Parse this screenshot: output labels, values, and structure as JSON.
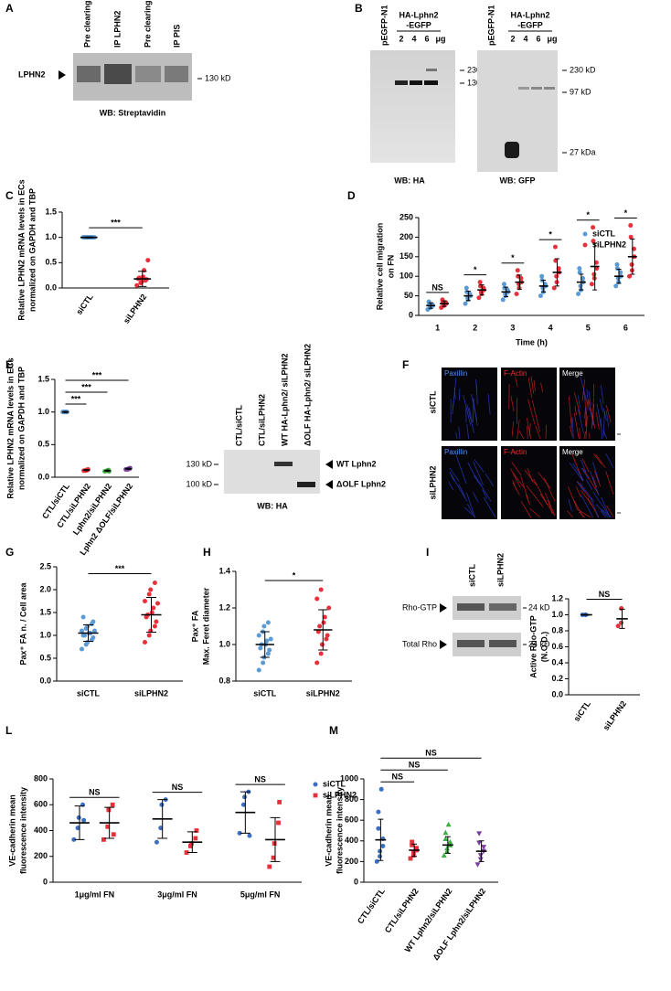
{
  "panel_labels": [
    "A",
    "B",
    "C",
    "D",
    "E",
    "F",
    "G",
    "H",
    "I",
    "L",
    "M"
  ],
  "blot_a": {
    "lanes": [
      "Pre clearing",
      "IP LPHN2",
      "Pre clearing",
      "IP PIS"
    ],
    "band": "LPHN2",
    "marker": "130 kD",
    "wb": "WB: Streptavidin"
  },
  "blot_b_ha": {
    "control": "pEGFP-N1",
    "construct": [
      "HA-Lphn2",
      "-EGFP"
    ],
    "doses": [
      "2",
      "4",
      "6",
      "μg"
    ],
    "markers": [
      "230 kD",
      "130 kD"
    ],
    "wb": "WB: HA"
  },
  "blot_b_gfp": {
    "control": "pEGFP-N1",
    "construct": [
      "HA-Lphn2",
      "-EGFP"
    ],
    "doses": [
      "2",
      "4",
      "6",
      "μg"
    ],
    "markers": [
      "230 kD",
      "97 kD",
      "27 kDa"
    ],
    "wb": "WB: GFP"
  },
  "blot_e": {
    "lanes": [
      "CTL/siCTL",
      "CTL/siLPHN2",
      "WT HA-Lphn2/ siLPHN2",
      "ΔOLF HA-Lphn2/ siLPHN2"
    ],
    "markers": [
      "130 kD",
      "100 kD"
    ],
    "bands": [
      "WT Lphn2",
      "ΔOLF Lphn2"
    ],
    "wb": "WB: HA"
  },
  "micrographs_f": {
    "channels": [
      "Paxillin",
      "F-Actin",
      "Merge"
    ],
    "conditions": [
      "siCTL",
      "siLPHN2"
    ]
  },
  "blot_i": {
    "lanes": [
      "siCTL",
      "siLPHN2"
    ],
    "bands": [
      "Rho-GTP",
      "Total Rho"
    ],
    "markers": [
      "24 kD",
      "24 kD"
    ]
  },
  "chart_data": [
    {
      "type": "dot",
      "ylabel": [
        "Relative LPHN2 mRNA levels in ECs",
        "normalized on GAPDH and TBP"
      ],
      "categories": [
        "siCTL",
        "siLPHN2"
      ],
      "ylim": [
        0,
        1.5
      ],
      "yticks": [
        {
          "value": 0,
          "label": "0.0"
        },
        {
          "value": 0.5,
          "label": "0.5"
        },
        {
          "value": 1,
          "label": "1.0"
        },
        {
          "value": 1.5,
          "label": "1.5"
        }
      ],
      "series": [
        {
          "color": [
            "#5b9bd5",
            "#e8303a"
          ],
          "marker": "circle",
          "points": [
            [
              1,
              1,
              1,
              1,
              1,
              1,
              1,
              1,
              1,
              1,
              1,
              1
            ],
            [
              0.05,
              0.1,
              0.12,
              0.15,
              0.17,
              0.18,
              0.2,
              0.22,
              0.35,
              0.55
            ]
          ],
          "mean": [
            1,
            0.18
          ],
          "sd": [
            0.01,
            0.15
          ]
        }
      ],
      "significance": [
        "***"
      ]
    },
    {
      "type": "dot",
      "ylabel": [
        "Relative cell migration",
        "on FN"
      ],
      "xlabel": "Time (h)",
      "categories": [
        "1",
        "2",
        "3",
        "4",
        "5",
        "6"
      ],
      "ylim": [
        0,
        250
      ],
      "yticks": [
        0,
        50,
        100,
        150,
        200,
        250
      ],
      "series": [
        {
          "name": "siCTL",
          "color": "#5b9bd5",
          "marker": "circle",
          "points": [
            [
              15,
              20,
              22,
              25,
              28,
              30,
              35
            ],
            [
              30,
              40,
              45,
              50,
              55,
              60,
              70
            ],
            [
              40,
              50,
              55,
              60,
              65,
              70,
              80
            ],
            [
              50,
              60,
              70,
              75,
              80,
              90,
              100
            ],
            [
              55,
              65,
              75,
              85,
              95,
              110,
              120
            ],
            [
              75,
              85,
              95,
              100,
              110,
              120,
              130
            ]
          ],
          "mean": [
            25,
            50,
            60,
            75,
            85,
            100
          ],
          "sd": [
            7,
            12,
            12,
            15,
            20,
            18
          ]
        },
        {
          "name": "siLPHN2",
          "color": "#e8303a",
          "marker": "circle",
          "points": [
            [
              20,
              25,
              28,
              30,
              33,
              36,
              40
            ],
            [
              45,
              55,
              60,
              65,
              70,
              75,
              85
            ],
            [
              55,
              70,
              80,
              85,
              95,
              100,
              115
            ],
            [
              70,
              85,
              100,
              110,
              120,
              140,
              175
            ],
            [
              80,
              95,
              105,
              120,
              135,
              190,
              225
            ],
            [
              100,
              115,
              130,
              150,
              170,
              200,
              230
            ]
          ],
          "mean": [
            30,
            65,
            85,
            110,
            125,
            150
          ],
          "sd": [
            7,
            13,
            18,
            35,
            60,
            45
          ]
        }
      ],
      "significance": [
        "NS",
        "*",
        "*",
        "*",
        "*",
        "*"
      ]
    },
    {
      "type": "dot",
      "ylabel": [
        "Relative LPHN2 mRNA levels in ECs",
        "normalized on GAPDH and TBP"
      ],
      "categories": [
        "CTL/siCTL",
        "CTL/siLPHN2",
        "Lphn2/siLPHN2",
        "Lphn2 ΔOLF/siLPHN2"
      ],
      "ylim": [
        0,
        1.5
      ],
      "yticks": [
        {
          "value": 0,
          "label": "0.0"
        },
        {
          "value": 0.5,
          "label": "0.5"
        },
        {
          "value": 1,
          "label": "1.0"
        },
        {
          "value": 1.5,
          "label": "1.5"
        }
      ],
      "series": [
        {
          "color": [
            "#5b9bd5",
            "#e8303a",
            "#3cb043",
            "#7b3fa0"
          ],
          "marker": "circle",
          "points": [
            [
              1,
              1,
              1,
              1,
              1,
              1,
              1,
              1
            ],
            [
              0.1,
              0.11,
              0.1,
              0.12,
              0.11
            ],
            [
              0.09,
              0.1,
              0.1,
              0.09,
              0.11
            ],
            [
              0.12,
              0.13,
              0.12,
              0.14,
              0.13
            ]
          ],
          "mean": [
            1,
            0.11,
            0.1,
            0.13
          ],
          "sd": [
            0.01,
            0.01,
            0.01,
            0.01
          ]
        }
      ],
      "significance": [
        "***",
        "***",
        "***"
      ]
    },
    {
      "type": "dot",
      "ylabel": [
        "Pax⁺ FA n. / Cell area"
      ],
      "categories": [
        "siCTL",
        "siLPHN2"
      ],
      "ylim": [
        0,
        2.5
      ],
      "yticks": [
        {
          "value": 0,
          "label": "0.0"
        },
        {
          "value": 0.5,
          "label": "0.5"
        },
        {
          "value": 1,
          "label": "1.0"
        },
        {
          "value": 1.5,
          "label": "1.5"
        },
        {
          "value": 2,
          "label": "2.0"
        },
        {
          "value": 2.5,
          "label": "2.5"
        }
      ],
      "series": [
        {
          "color": [
            "#5b9bd5",
            "#e8303a"
          ],
          "marker": "circle",
          "points": [
            [
              0.7,
              0.8,
              0.85,
              0.9,
              0.95,
              1.0,
              1.0,
              1.05,
              1.05,
              1.1,
              1.1,
              1.15,
              1.2,
              1.25,
              1.3,
              1.4
            ],
            [
              0.85,
              1.0,
              1.1,
              1.2,
              1.3,
              1.4,
              1.45,
              1.5,
              1.6,
              1.7,
              1.75,
              1.9,
              2.0,
              2.15
            ]
          ],
          "mean": [
            1.05,
            1.45
          ],
          "sd": [
            0.18,
            0.38
          ]
        }
      ],
      "significance": [
        "***"
      ]
    },
    {
      "type": "dot",
      "ylabel": [
        "Pax⁺ FA",
        "Max. Feret diameter"
      ],
      "categories": [
        "siCTL",
        "siLPHN2"
      ],
      "ylim": [
        0.8,
        1.4
      ],
      "yticks": [
        {
          "value": 0.8,
          "label": "0.8"
        },
        {
          "value": 1,
          "label": "1.0"
        },
        {
          "value": 1.2,
          "label": "1.2"
        },
        {
          "value": 1.4,
          "label": "1.4"
        }
      ],
      "series": [
        {
          "color": [
            "#5b9bd5",
            "#e8303a"
          ],
          "marker": "circle",
          "points": [
            [
              0.86,
              0.9,
              0.93,
              0.95,
              0.97,
              0.98,
              1.0,
              1.0,
              1.02,
              1.03,
              1.05,
              1.07,
              1.1,
              1.12
            ],
            [
              0.9,
              0.95,
              1.0,
              1.03,
              1.05,
              1.07,
              1.1,
              1.12,
              1.15,
              1.2,
              1.25,
              1.3
            ]
          ],
          "mean": [
            1.0,
            1.08
          ],
          "sd": [
            0.07,
            0.11
          ]
        }
      ],
      "significance": [
        "*"
      ]
    },
    {
      "type": "dot",
      "ylabel": [
        "Active Rho-GTP",
        "(N.O.D.)"
      ],
      "categories": [
        "siCTL",
        "siLPHN2"
      ],
      "ylim": [
        0,
        1.2
      ],
      "yticks": [
        {
          "value": 0,
          "label": "0.0"
        },
        {
          "value": 0.2,
          "label": "0.2"
        },
        {
          "value": 0.4,
          "label": "0.4"
        },
        {
          "value": 0.6,
          "label": "0.6"
        },
        {
          "value": 0.8,
          "label": "0.8"
        },
        {
          "value": 1,
          "label": "1.0"
        },
        {
          "value": 1.2,
          "label": "1.2"
        }
      ],
      "series": [
        {
          "color": [
            "#3a6fc4",
            "#e8303a"
          ],
          "marker": "circle",
          "points": [
            [
              1,
              1,
              1
            ],
            [
              0.86,
              0.9,
              1.08
            ]
          ],
          "mean": [
            1,
            0.95
          ],
          "sd": [
            0.005,
            0.12
          ]
        }
      ],
      "significance": [
        "NS"
      ]
    },
    {
      "type": "dot",
      "ylabel": [
        "VE-cadherin mean",
        "fluorescence intensity"
      ],
      "categories": [
        "1μg/ml FN",
        "3μg/ml FN",
        "5μg/ml FN"
      ],
      "ylim": [
        0,
        800
      ],
      "yticks": [
        0,
        200,
        400,
        600,
        800
      ],
      "series": [
        {
          "name": "siCTL",
          "color": "#3a6fc4",
          "marker": "circle",
          "points": [
            [
              330,
              420,
              500,
              600,
              480
            ],
            [
              310,
              420,
              600,
              640
            ],
            [
              380,
              600,
              660,
              700,
              360
            ]
          ],
          "mean": [
            460,
            490,
            540
          ],
          "sd": [
            130,
            150,
            160
          ]
        },
        {
          "name": "siLPHN2",
          "color": "#e8303a",
          "marker": "square",
          "points": [
            [
              330,
              430,
              560,
              600,
              370
            ],
            [
              230,
              280,
              300,
              340,
              400
            ],
            [
              120,
              190,
              300,
              460,
              620
            ]
          ],
          "mean": [
            460,
            310,
            330
          ],
          "sd": [
            120,
            80,
            170
          ]
        }
      ],
      "significance": [
        "NS",
        "NS",
        "NS"
      ]
    },
    {
      "type": "dot",
      "ylabel": [
        "VE-cadherin mean",
        "fluorescence intensity"
      ],
      "categories": [
        "CTL/siCTL",
        "CTL/siLPHN2",
        "WT Lphn2/siLPHN2",
        "ΔOLF Lphn2/siLPHN2"
      ],
      "ylim": [
        0,
        1000
      ],
      "yticks": [
        0,
        200,
        400,
        600,
        800,
        1000
      ],
      "series": [
        {
          "color": [
            "#3a6fc4",
            "#e8303a",
            "#3cb043",
            "#7b3fa0"
          ],
          "marker": [
            "circle",
            "square",
            "triangle",
            "triangle-down"
          ],
          "points": [
            [
              200,
              250,
              300,
              350,
              420,
              520,
              680,
              900
            ],
            [
              230,
              260,
              290,
              310,
              330,
              360,
              390
            ],
            [
              260,
              300,
              330,
              360,
              390,
              420,
              480,
              560
            ],
            [
              170,
              220,
              260,
              300,
              340,
              380,
              470
            ]
          ],
          "mean": [
            410,
            310,
            360,
            300
          ],
          "sd": [
            200,
            60,
            80,
            100
          ]
        }
      ],
      "significance": [
        "NS",
        "NS",
        "NS"
      ]
    }
  ]
}
